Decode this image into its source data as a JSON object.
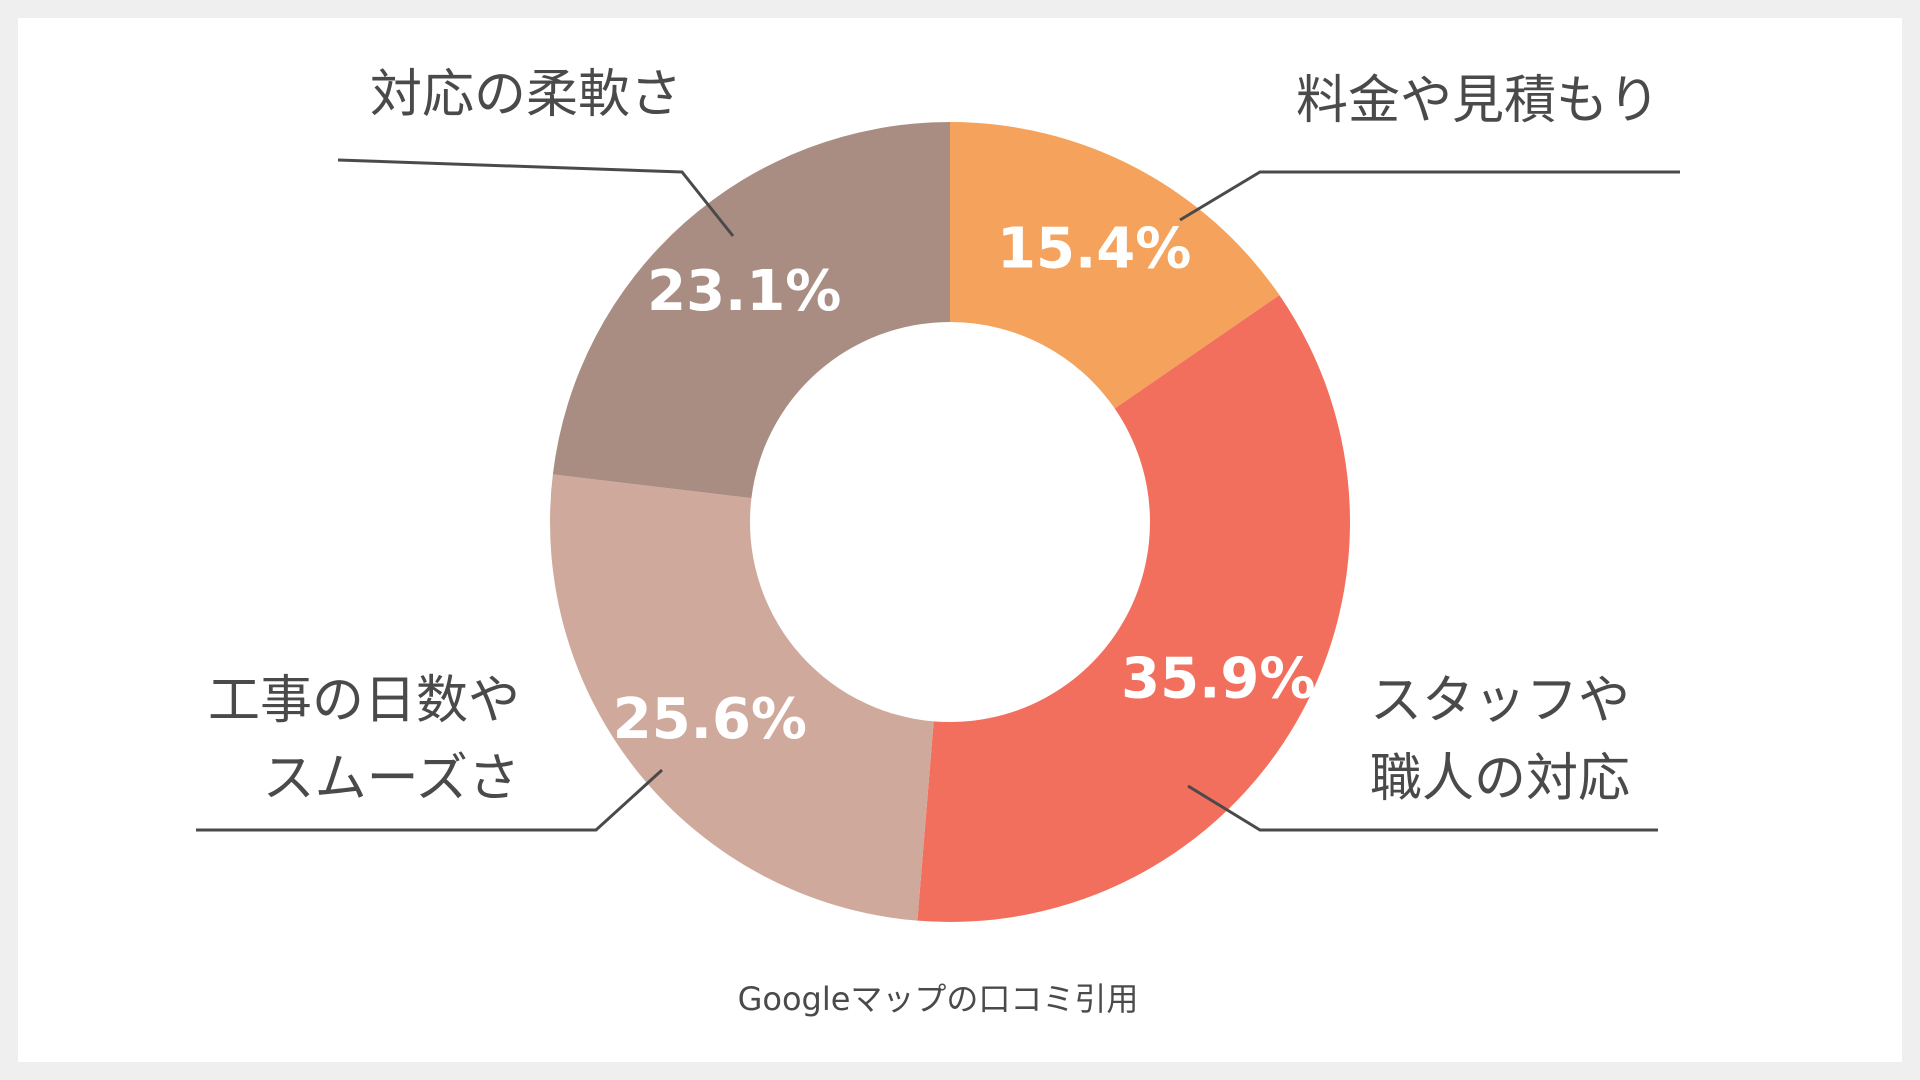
{
  "chart_data": {
    "type": "pie",
    "variant": "donut",
    "start_angle_deg": 0,
    "direction": "clockwise",
    "slices": [
      {
        "label_lines": [
          "料金や見積もり"
        ],
        "value": 15.4,
        "display": "15.4%",
        "color": "#f4a25c"
      },
      {
        "label_lines": [
          "スタッフや",
          "職人の対応"
        ],
        "value": 35.9,
        "display": "35.9%",
        "color": "#f26f5e"
      },
      {
        "label_lines": [
          "工事の日数や",
          "スムーズさ"
        ],
        "value": 25.6,
        "display": "25.6%",
        "color": "#cfa99b"
      },
      {
        "label_lines": [
          "対応の柔軟さ"
        ],
        "value": 23.1,
        "display": "23.1%",
        "color": "#a98d82"
      }
    ]
  },
  "source_note": "Googleマップの口コミ引用"
}
